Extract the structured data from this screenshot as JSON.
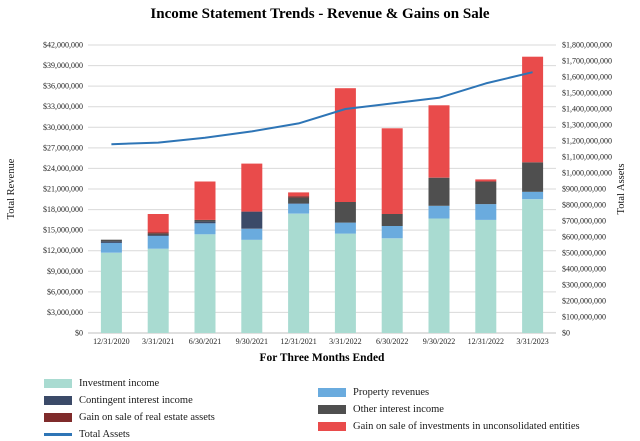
{
  "title": "Income Statement Trends - Revenue & Gains on Sale",
  "chart_data": {
    "type": "bar",
    "subtype": "stacked-with-line-overlay",
    "title": "Income Statement Trends - Revenue & Gains on Sale",
    "x_label": "For Three Months Ended",
    "grid": "horizontal",
    "legend_position": "bottom",
    "y_left": {
      "label": "Total Revenue",
      "min": 0,
      "max": 42000000,
      "step": 3000000
    },
    "y_right": {
      "label": "Total Assets",
      "min": 0,
      "max": 1800000000,
      "step": 100000000
    },
    "categories": [
      "12/31/2020",
      "3/31/2021",
      "6/30/2021",
      "9/30/2021",
      "12/31/2021",
      "3/31/2022",
      "6/30/2022",
      "9/30/2022",
      "12/31/2022",
      "3/31/2023"
    ],
    "bar_series": [
      {
        "name": "Investment income",
        "color": "#a9dbd1",
        "values": [
          11700000,
          12300000,
          14400000,
          13600000,
          17400000,
          14500000,
          13800000,
          16700000,
          16500000,
          19500000
        ]
      },
      {
        "name": "Property revenues",
        "color": "#6aabde",
        "values": [
          1450000,
          1850000,
          1600000,
          1600000,
          1450000,
          1600000,
          1800000,
          1850000,
          2300000,
          1100000
        ]
      },
      {
        "name": "Contingent interest income",
        "color": "#3b4a68",
        "values": [
          200000,
          150000,
          250000,
          2500000,
          100000,
          0,
          0,
          0,
          0,
          0
        ]
      },
      {
        "name": "Other interest income",
        "color": "#4f4f4f",
        "values": [
          250000,
          200000,
          250000,
          0,
          800000,
          3000000,
          1750000,
          4100000,
          3300000,
          4300000
        ]
      },
      {
        "name": "Gain on sale of real estate assets",
        "color": "#7f2b2b",
        "values": [
          0,
          150000,
          0,
          0,
          200000,
          0,
          0,
          0,
          0,
          0
        ]
      },
      {
        "name": "Gain on sale of investments in unconsolidated entities",
        "color": "#e94b4b",
        "values": [
          0,
          2700000,
          5600000,
          7000000,
          550000,
          16600000,
          12500000,
          10550000,
          300000,
          15400000
        ]
      }
    ],
    "line_series": {
      "name": "Total Assets",
      "color": "#2e75b6",
      "axis": "right",
      "values": [
        1180000000,
        1190000000,
        1220000000,
        1260000000,
        1310000000,
        1400000000,
        1435000000,
        1470000000,
        1560000000,
        1630000000
      ]
    },
    "legend": {
      "left": [
        {
          "label": "Investment income",
          "color": "#a9dbd1",
          "shape": "bar"
        },
        {
          "label": "Contingent interest income",
          "color": "#3b4a68",
          "shape": "bar"
        },
        {
          "label": "Gain on sale of real estate assets",
          "color": "#7f2b2b",
          "shape": "bar"
        },
        {
          "label": "Total Assets",
          "color": "#2e75b6",
          "shape": "line"
        }
      ],
      "right": [
        {
          "label": "Property revenues",
          "color": "#6aabde",
          "shape": "bar"
        },
        {
          "label": "Other interest income",
          "color": "#4f4f4f",
          "shape": "bar"
        },
        {
          "label": "Gain on sale of investments in unconsolidated entities",
          "color": "#e94b4b",
          "shape": "bar"
        }
      ]
    }
  }
}
